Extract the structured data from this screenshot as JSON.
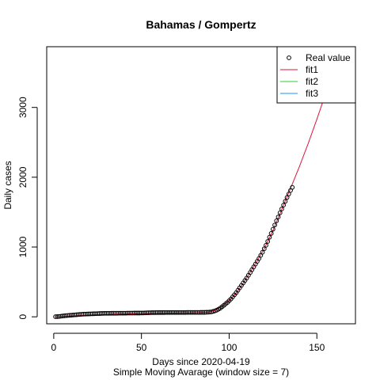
{
  "chart_data": {
    "type": "scatter",
    "title": "Bahamas / Gompertz",
    "xlabel": "Days since 2020-04-19",
    "xlabel2": "Simple Moving Avarage (window size = 7)",
    "ylabel": "Daily cases",
    "xlim": [
      -4,
      172
    ],
    "ylim": [
      -100,
      3870
    ],
    "xticks": [
      0,
      50,
      100,
      150
    ],
    "yticks": [
      0,
      1000,
      2000,
      3000
    ],
    "xtick_labels": [
      "0",
      "50",
      "100",
      "150"
    ],
    "ytick_labels": [
      "0",
      "1000",
      "2000",
      "3000"
    ],
    "legend": {
      "position": "top-right",
      "entries": [
        {
          "label": "Real value",
          "symbol": "circle",
          "color": "#000000"
        },
        {
          "label": "fit1",
          "symbol": "line",
          "color": "#dc143c"
        },
        {
          "label": "fit2",
          "symbol": "line",
          "color": "#32cd32"
        },
        {
          "label": "fit3",
          "symbol": "line",
          "color": "#1e90ff"
        }
      ]
    },
    "series": [
      {
        "name": "Real value",
        "kind": "points",
        "color": "#000000",
        "points": [
          [
            1,
            2
          ],
          [
            2,
            3
          ],
          [
            3,
            5
          ],
          [
            4,
            8
          ],
          [
            5,
            11
          ],
          [
            6,
            14
          ],
          [
            7,
            17
          ],
          [
            8,
            19
          ],
          [
            9,
            21
          ],
          [
            10,
            23
          ],
          [
            11,
            26
          ],
          [
            12,
            28
          ],
          [
            13,
            30
          ],
          [
            14,
            32
          ],
          [
            15,
            34
          ],
          [
            16,
            36
          ],
          [
            17,
            38
          ],
          [
            18,
            39
          ],
          [
            19,
            40
          ],
          [
            20,
            41
          ],
          [
            21,
            42
          ],
          [
            22,
            43
          ],
          [
            23,
            44
          ],
          [
            24,
            45
          ],
          [
            25,
            46
          ],
          [
            26,
            47
          ],
          [
            27,
            48
          ],
          [
            28,
            49
          ],
          [
            29,
            50
          ],
          [
            30,
            50
          ],
          [
            31,
            50
          ],
          [
            32,
            50
          ],
          [
            33,
            51
          ],
          [
            34,
            51
          ],
          [
            35,
            51
          ],
          [
            36,
            51
          ],
          [
            37,
            52
          ],
          [
            38,
            52
          ],
          [
            39,
            52
          ],
          [
            40,
            52
          ],
          [
            41,
            52
          ],
          [
            42,
            53
          ],
          [
            43,
            53
          ],
          [
            44,
            53
          ],
          [
            45,
            53
          ],
          [
            46,
            54
          ],
          [
            47,
            54
          ],
          [
            48,
            54
          ],
          [
            49,
            54
          ],
          [
            50,
            55
          ],
          [
            51,
            55
          ],
          [
            52,
            56
          ],
          [
            53,
            57
          ],
          [
            54,
            58
          ],
          [
            55,
            59
          ],
          [
            56,
            60
          ],
          [
            57,
            60
          ],
          [
            58,
            60
          ],
          [
            59,
            61
          ],
          [
            60,
            61
          ],
          [
            61,
            61
          ],
          [
            62,
            61
          ],
          [
            63,
            61
          ],
          [
            64,
            62
          ],
          [
            65,
            62
          ],
          [
            66,
            62
          ],
          [
            67,
            62
          ],
          [
            68,
            62
          ],
          [
            69,
            62
          ],
          [
            70,
            62
          ],
          [
            71,
            62
          ],
          [
            72,
            62
          ],
          [
            73,
            62
          ],
          [
            74,
            62
          ],
          [
            75,
            62
          ],
          [
            76,
            63
          ],
          [
            77,
            63
          ],
          [
            78,
            63
          ],
          [
            79,
            63
          ],
          [
            80,
            63
          ],
          [
            81,
            63
          ],
          [
            82,
            63
          ],
          [
            83,
            63
          ],
          [
            84,
            64
          ],
          [
            85,
            64
          ],
          [
            86,
            64
          ],
          [
            87,
            65
          ],
          [
            88,
            66
          ],
          [
            89,
            68
          ],
          [
            90,
            72
          ],
          [
            91,
            78
          ],
          [
            92,
            86
          ],
          [
            93,
            96
          ],
          [
            94,
            110
          ],
          [
            95,
            125
          ],
          [
            96,
            145
          ],
          [
            97,
            165
          ],
          [
            98,
            185
          ],
          [
            99,
            205
          ],
          [
            100,
            230
          ],
          [
            101,
            255
          ],
          [
            102,
            285
          ],
          [
            103,
            315
          ],
          [
            104,
            345
          ],
          [
            105,
            380
          ],
          [
            106,
            415
          ],
          [
            107,
            450
          ],
          [
            108,
            485
          ],
          [
            109,
            520
          ],
          [
            110,
            555
          ],
          [
            111,
            595
          ],
          [
            112,
            635
          ],
          [
            113,
            675
          ],
          [
            114,
            715
          ],
          [
            115,
            755
          ],
          [
            116,
            795
          ],
          [
            117,
            835
          ],
          [
            118,
            880
          ],
          [
            119,
            925
          ],
          [
            120,
            975
          ],
          [
            121,
            1025
          ],
          [
            122,
            1080
          ],
          [
            123,
            1140
          ],
          [
            124,
            1195
          ],
          [
            125,
            1255
          ],
          [
            126,
            1315
          ],
          [
            127,
            1375
          ],
          [
            128,
            1430
          ],
          [
            129,
            1490
          ],
          [
            130,
            1545
          ],
          [
            131,
            1600
          ],
          [
            132,
            1655
          ],
          [
            133,
            1710
          ],
          [
            134,
            1760
          ],
          [
            135,
            1810
          ],
          [
            136,
            1855
          ]
        ]
      },
      {
        "name": "fit1",
        "kind": "line",
        "color": "#dc143c",
        "points": [
          [
            1,
            0
          ],
          [
            20,
            25
          ],
          [
            40,
            40
          ],
          [
            60,
            50
          ],
          [
            80,
            58
          ],
          [
            88,
            64
          ],
          [
            92,
            90
          ],
          [
            96,
            150
          ],
          [
            100,
            230
          ],
          [
            104,
            340
          ],
          [
            108,
            480
          ],
          [
            112,
            640
          ],
          [
            116,
            800
          ],
          [
            120,
            975
          ],
          [
            125,
            1240
          ],
          [
            130,
            1540
          ],
          [
            135,
            1840
          ],
          [
            140,
            2150
          ],
          [
            145,
            2480
          ],
          [
            150,
            2830
          ],
          [
            155,
            3200
          ],
          [
            160,
            3600
          ],
          [
            165,
            4000
          ]
        ]
      }
    ]
  }
}
